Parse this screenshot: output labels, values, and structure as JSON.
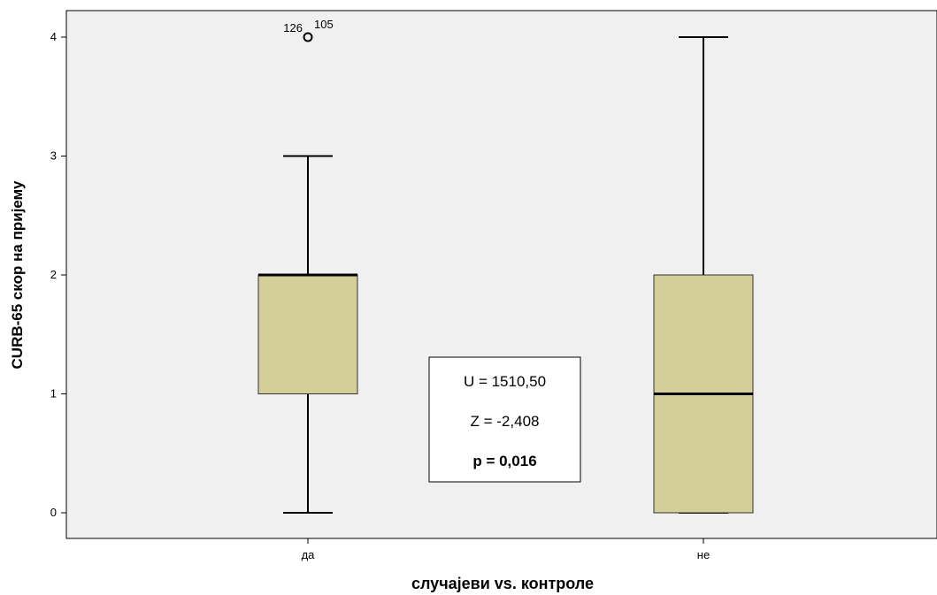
{
  "chart_data": {
    "type": "box",
    "title": "",
    "xlabel": "случајеви vs. контроле",
    "ylabel": "CURB-65 скор на пријему",
    "ylim": [
      -0.2,
      4.25
    ],
    "yticks": [
      0,
      1,
      2,
      3,
      4
    ],
    "grid": false,
    "categories": [
      "да",
      "не"
    ],
    "boxes": [
      {
        "category": "да",
        "whisker_low": 0,
        "q1": 1,
        "median": 2,
        "q3": 2,
        "whisker_high": 3,
        "outliers": [
          {
            "value": 4,
            "labels": [
              "126",
              "105"
            ]
          }
        ]
      },
      {
        "category": "не",
        "whisker_low": 0,
        "q1": 0,
        "median": 1,
        "q3": 2,
        "whisker_high": 4,
        "outliers": []
      }
    ],
    "annotation": {
      "lines": [
        "U = 1510,50",
        "Z = -2,408",
        "p = 0,016"
      ],
      "bold": [
        false,
        false,
        true
      ]
    }
  },
  "colors": {
    "plot_background": "#f0f0f0",
    "box_fill": "#d4cf98",
    "line": "#000000"
  }
}
